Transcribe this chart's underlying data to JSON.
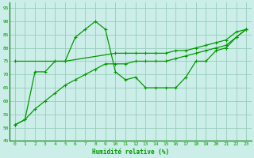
{
  "xlabel": "Humidité relative (%)",
  "x_ticks": [
    0,
    1,
    2,
    3,
    4,
    5,
    6,
    7,
    8,
    9,
    10,
    11,
    12,
    13,
    14,
    15,
    16,
    17,
    18,
    19,
    20,
    21,
    22,
    23
  ],
  "ylim": [
    45,
    97
  ],
  "xlim": [
    -0.5,
    23.5
  ],
  "yticks": [
    45,
    50,
    55,
    60,
    65,
    70,
    75,
    80,
    85,
    90,
    95
  ],
  "bg_color": "#cceee8",
  "grid_color": "#99ccbb",
  "line_color": "#009900",
  "line1_x": [
    0,
    1,
    2,
    3,
    4,
    5,
    6,
    7,
    8,
    9,
    10,
    11,
    12,
    13,
    14,
    15,
    16,
    17,
    18,
    19,
    20,
    21,
    22,
    23
  ],
  "line1_y": [
    51,
    53,
    71,
    71,
    75,
    75,
    84,
    87,
    90,
    87,
    71,
    68,
    69,
    65,
    65,
    65,
    65,
    69,
    75,
    75,
    79,
    80,
    84,
    87
  ],
  "line2_x": [
    0,
    5,
    10,
    11,
    12,
    13,
    14,
    15,
    16,
    17,
    18,
    19,
    20,
    21,
    22,
    23
  ],
  "line2_y": [
    75,
    75,
    78,
    78,
    78,
    78,
    78,
    78,
    79,
    79,
    80,
    81,
    82,
    83,
    86,
    87
  ],
  "line3_x": [
    0,
    1,
    2,
    3,
    4,
    5,
    6,
    7,
    8,
    9,
    10,
    11,
    12,
    13,
    14,
    15,
    16,
    17,
    18,
    19,
    20,
    21,
    22,
    23
  ],
  "line3_y": [
    51,
    53,
    57,
    60,
    63,
    66,
    68,
    70,
    72,
    74,
    74,
    74,
    75,
    75,
    75,
    75,
    76,
    77,
    78,
    79,
    80,
    81,
    84,
    87
  ]
}
